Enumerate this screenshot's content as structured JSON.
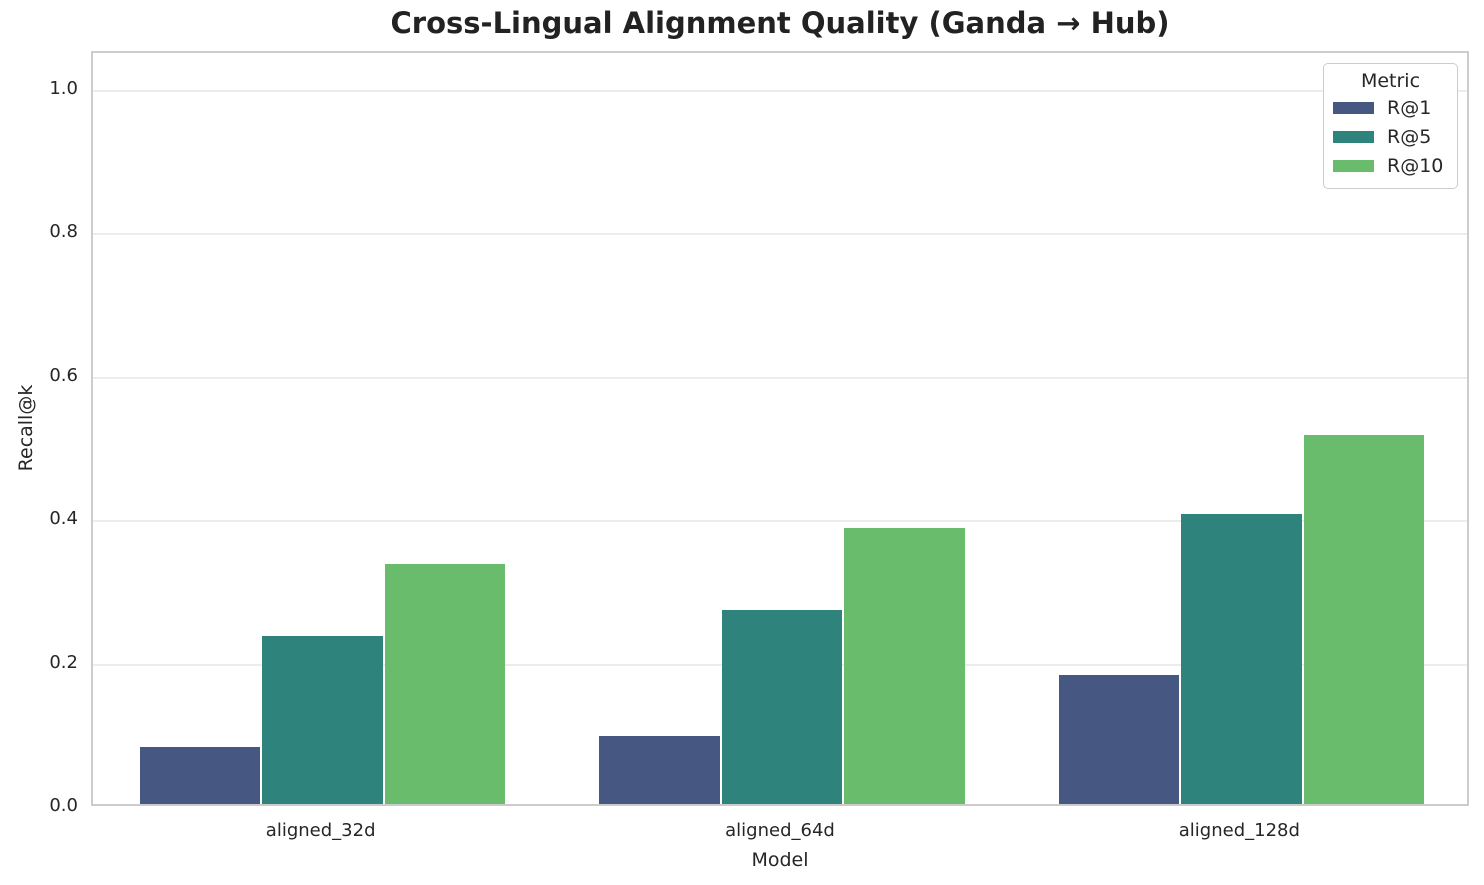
{
  "chart_data": {
    "type": "bar",
    "title": "Cross-Lingual Alignment Quality (Ganda → Hub)",
    "xlabel": "Model",
    "ylabel": "Recall@k",
    "categories": [
      "aligned_32d",
      "aligned_64d",
      "aligned_128d"
    ],
    "series": [
      {
        "name": "R@1",
        "color": "#465782",
        "values": [
          0.08,
          0.095,
          0.18
        ]
      },
      {
        "name": "R@5",
        "color": "#2E837D",
        "values": [
          0.235,
          0.27,
          0.405
        ]
      },
      {
        "name": "R@10",
        "color": "#69BC6B",
        "values": [
          0.335,
          0.385,
          0.515
        ]
      }
    ],
    "ylim": [
      0,
      1.053
    ],
    "yticks": [
      0.0,
      0.2,
      0.4,
      0.6,
      0.8,
      1.0
    ],
    "grid": "horizontal",
    "legend": {
      "title": "Metric",
      "position": "upper right",
      "entries": [
        "R@1",
        "R@5",
        "R@10"
      ]
    },
    "colors": {
      "grid": "#ececec",
      "spine": "#cccccc",
      "text": "#262626"
    }
  }
}
